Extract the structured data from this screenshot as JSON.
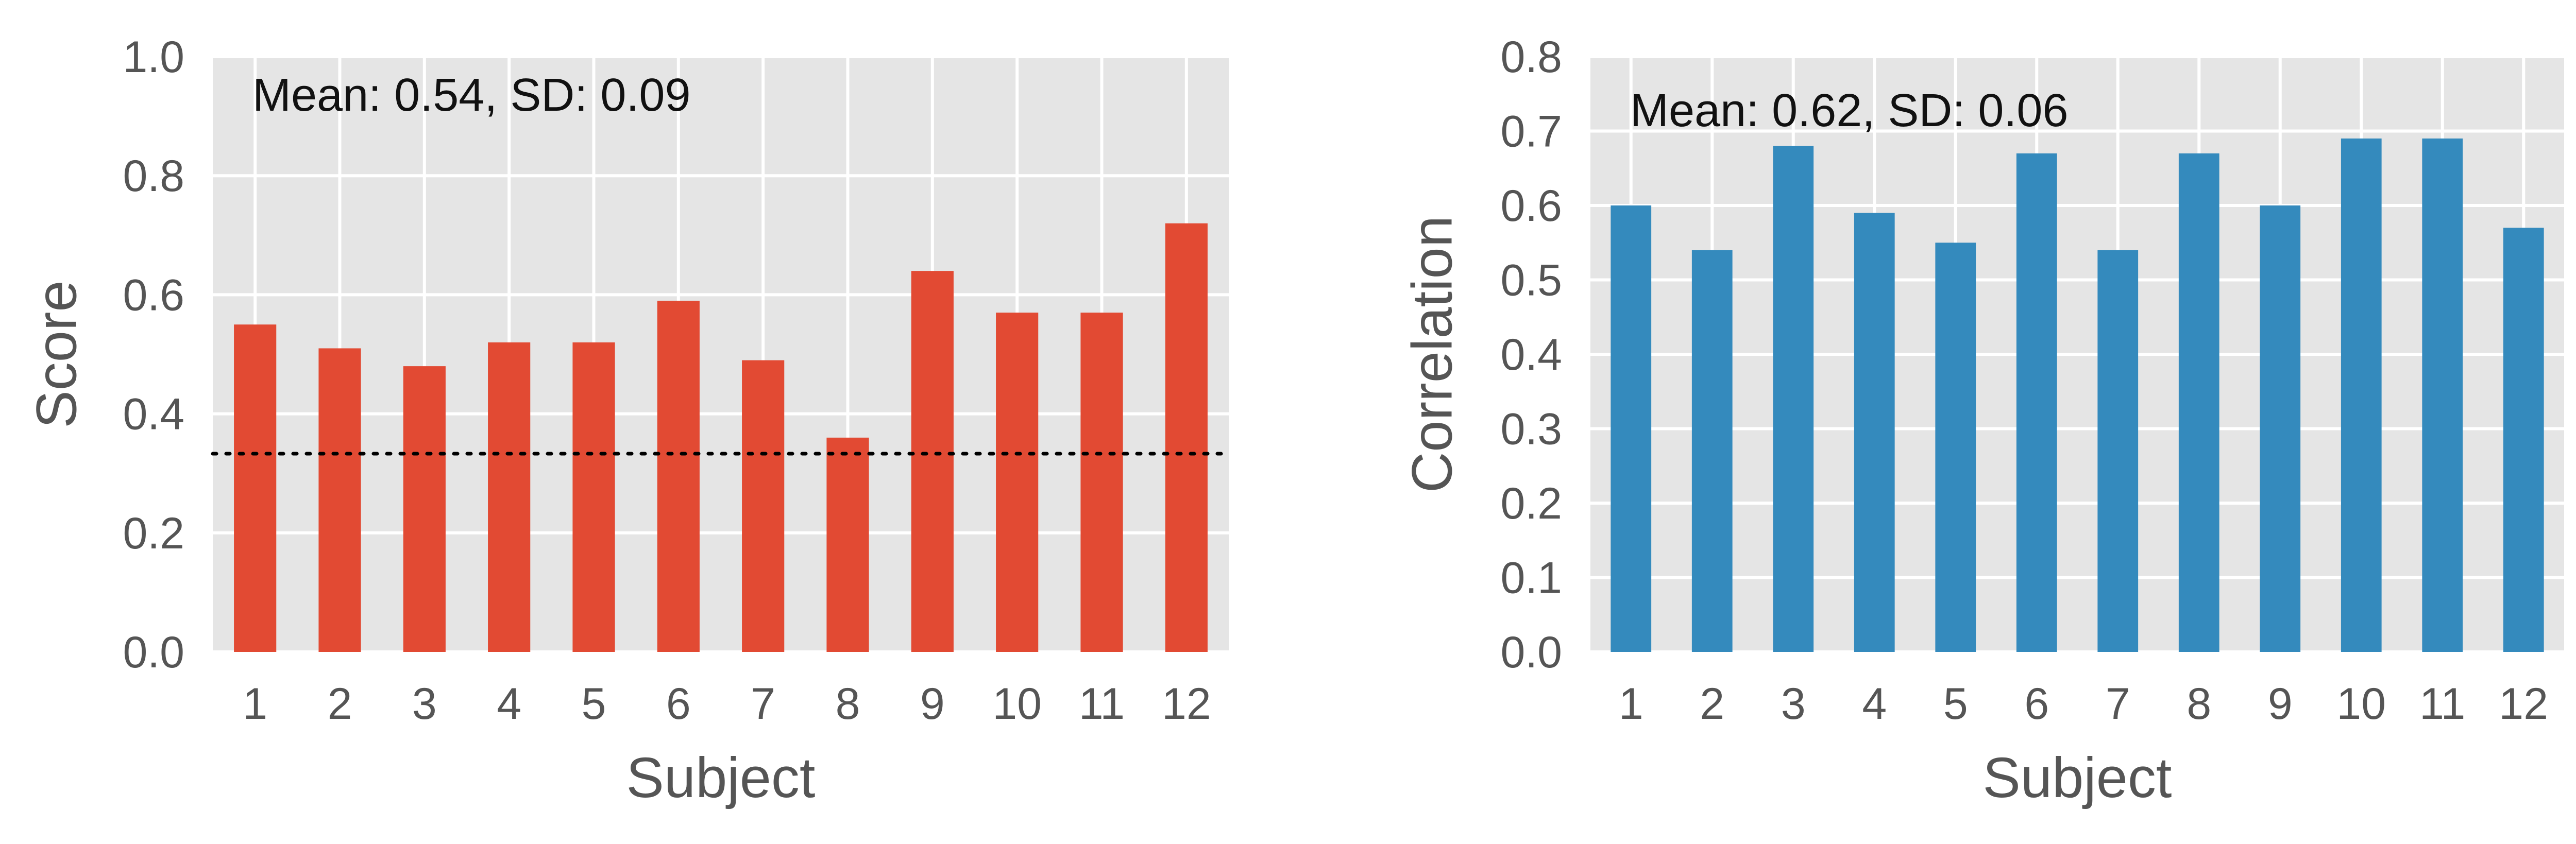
{
  "chart_data": [
    {
      "type": "bar",
      "categories": [
        "1",
        "2",
        "3",
        "4",
        "5",
        "6",
        "7",
        "8",
        "9",
        "10",
        "11",
        "12"
      ],
      "values": [
        0.55,
        0.51,
        0.48,
        0.52,
        0.52,
        0.59,
        0.49,
        0.36,
        0.64,
        0.57,
        0.57,
        0.72
      ],
      "xlabel": "Subject",
      "ylabel": "Score",
      "ylim": [
        0,
        1.0
      ],
      "yticks": [
        0.0,
        0.2,
        0.4,
        0.6,
        0.8,
        1.0
      ],
      "ytick_labels": [
        "0.0",
        "0.2",
        "0.4",
        "0.6",
        "0.8",
        "1.0"
      ],
      "annotation": "Mean: 0.54, SD: 0.09",
      "reference_line": 0.333,
      "color": "#E24A33",
      "background": "#E5E5E5",
      "grid": true
    },
    {
      "type": "bar",
      "categories": [
        "1",
        "2",
        "3",
        "4",
        "5",
        "6",
        "7",
        "8",
        "9",
        "10",
        "11",
        "12"
      ],
      "values": [
        0.6,
        0.54,
        0.68,
        0.59,
        0.55,
        0.67,
        0.54,
        0.67,
        0.6,
        0.69,
        0.69,
        0.57
      ],
      "xlabel": "Subject",
      "ylabel": "Correlation",
      "ylim": [
        0,
        0.8
      ],
      "yticks": [
        0.0,
        0.1,
        0.2,
        0.3,
        0.4,
        0.5,
        0.6,
        0.7,
        0.8
      ],
      "ytick_labels": [
        "0.0",
        "0.1",
        "0.2",
        "0.3",
        "0.4",
        "0.5",
        "0.6",
        "0.7",
        "0.8"
      ],
      "annotation": "Mean: 0.62, SD: 0.06",
      "color": "#348ABD",
      "background": "#E5E5E5",
      "grid": true
    }
  ]
}
